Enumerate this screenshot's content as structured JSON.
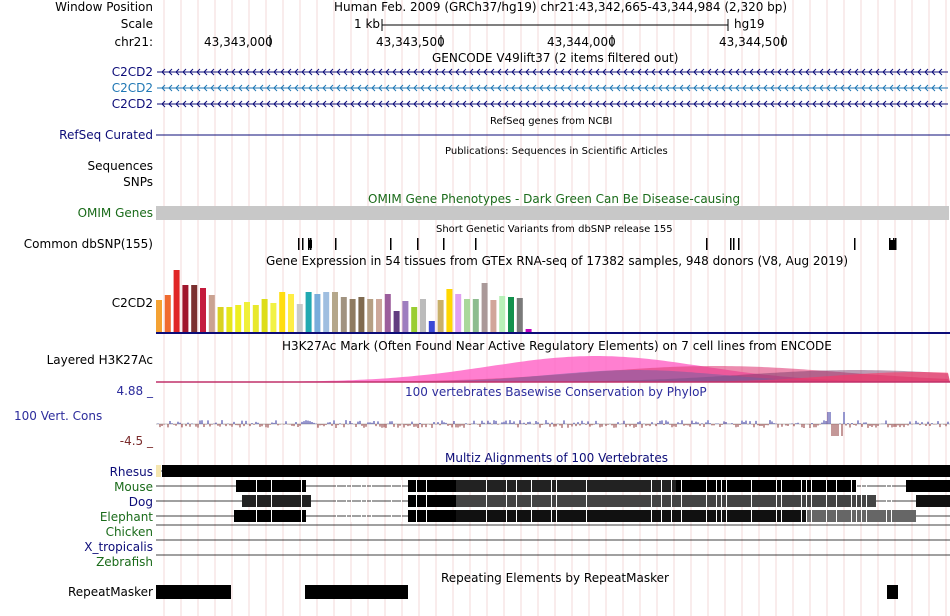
{
  "header": {
    "window_position_label": "Window Position",
    "window_position_value": "Human Feb. 2009 (GRCh37/hg19)   chr21:43,342,665-43,344,984 (2,320 bp)",
    "scale_label": "Scale",
    "scale_value": "1 kb",
    "assembly": "hg19",
    "chrom_label": "chr21:",
    "ticks": [
      "43,343,000",
      "43,343,500",
      "43,344,000",
      "43,344,500"
    ]
  },
  "tracks": {
    "gencode": {
      "title": "GENCODE V49lift37 (2 items filtered out)",
      "items": [
        "C2CD2",
        "C2CD2",
        "C2CD2"
      ],
      "colors": [
        "#0c0c78",
        "#1f77b4",
        "#0c0c78"
      ]
    },
    "refseq": {
      "label": "RefSeq Curated",
      "title": "RefSeq genes from NCBI"
    },
    "publications": {
      "label": "Sequences",
      "title": "Publications: Sequences in Scientific Articles"
    },
    "snps_label": "SNPs",
    "omim": {
      "label": "OMIM Genes",
      "title": "OMIM Gene Phenotypes - Dark Green Can Be Disease-causing"
    },
    "dbsnp": {
      "label": "Common dbSNP(155)",
      "title": "Short Genetic Variants from dbSNP release 155"
    },
    "gtex": {
      "label": "C2CD2",
      "title": "Gene Expression in 54 tissues from GTEx RNA-seq of 17382 samples, 948 donors (V8, Aug 2019)",
      "colors": [
        "#f4a233",
        "#f06b30",
        "#e02525",
        "#a0162c",
        "#7b2f2f",
        "#c41a3c",
        "#caa291",
        "#d9d220",
        "#e6e61b",
        "#eeee22",
        "#f0f03a",
        "#e8e82d",
        "#dddd1a",
        "#f2f244",
        "#ffdd11",
        "#ffee44",
        "#c9c9c9",
        "#21a9b1",
        "#7aaddb",
        "#9fbee0",
        "#b5a78b",
        "#a19380",
        "#8f7b60",
        "#7f6a4f",
        "#b59f84",
        "#cda89a",
        "#9c5e9c",
        "#623d80",
        "#9e7dbf",
        "#9acd32",
        "#bbbbbb",
        "#3b49d6",
        "#c9b06b",
        "#ffd700",
        "#e0a0f0",
        "#aad89a",
        "#8ebc8f",
        "#aa9999",
        "#d1a59a",
        "#b8f0b8",
        "#13914d",
        "#7a7a7a",
        "#c000c0"
      ]
    },
    "h3k27ac": {
      "label": "Layered H3K27Ac",
      "title": "H3K27Ac Mark (Often Found Near Active Regulatory Elements) on 7 cell lines from ENCODE"
    },
    "phylop": {
      "label": "100 Vert. Cons",
      "title": "100 vertebrates Basewise Conservation by PhyloP",
      "max": "4.88 _",
      "min": "-4.5 _"
    },
    "multiz": {
      "title": "Multiz Alignments of 100 Vertebrates",
      "species": [
        "Rhesus",
        "Mouse",
        "Dog",
        "Elephant",
        "Chicken",
        "X_tropicalis",
        "Zebrafish"
      ]
    },
    "repeatmasker": {
      "label": "RepeatMasker",
      "title": "Repeating Elements by RepeatMasker"
    }
  },
  "colors": {
    "label_blue": "#0c0c78",
    "omim_green": "#1a6b1a",
    "phylop_blue": "#2c2c9c"
  }
}
